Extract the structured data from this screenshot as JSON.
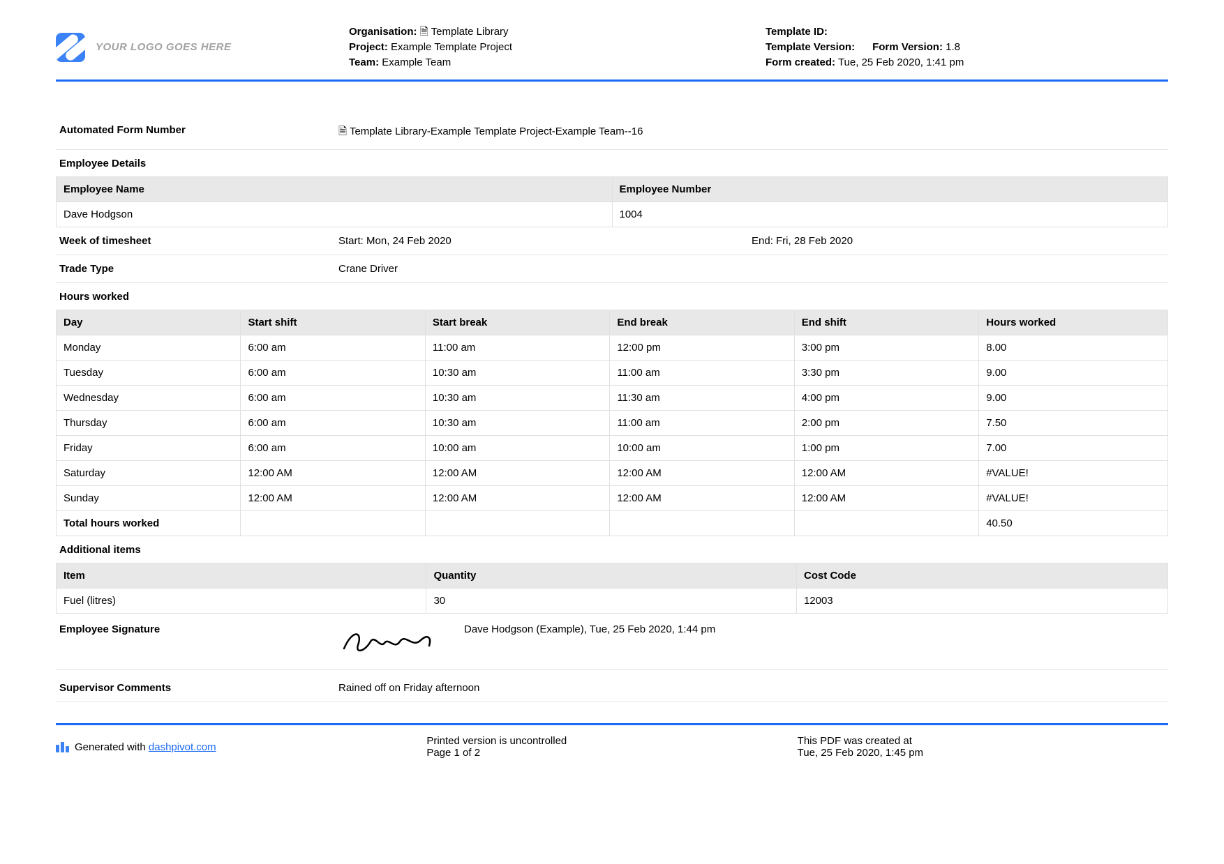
{
  "logo_placeholder": "YOUR LOGO GOES HERE",
  "header_meta_left": {
    "org_label": "Organisation:",
    "org_value": "🗎 Template Library",
    "project_label": "Project:",
    "project_value": "Example Template Project",
    "team_label": "Team:",
    "team_value": "Example Team"
  },
  "header_meta_right": {
    "tid_label": "Template ID:",
    "tver_label": "Template Version:",
    "fver_label": "Form Version:",
    "fver_value": "1.8",
    "created_label": "Form created:",
    "created_value": "Tue, 25 Feb 2020, 1:41 pm"
  },
  "form_number": {
    "label": "Automated Form Number",
    "value": "🗎 Template Library-Example Template Project-Example Team--16"
  },
  "employee_details_heading": "Employee Details",
  "employee_table": {
    "col1": "Employee Name",
    "col2": "Employee Number",
    "name": "Dave Hodgson",
    "number": "1004"
  },
  "week": {
    "label": "Week of timesheet",
    "start": "Start: Mon, 24 Feb 2020",
    "end": "End: Fri, 28 Feb 2020"
  },
  "trade": {
    "label": "Trade Type",
    "value": "Crane Driver"
  },
  "hours_heading": "Hours worked",
  "hours_table": {
    "columns": [
      "Day",
      "Start shift",
      "Start break",
      "End break",
      "End shift",
      "Hours worked"
    ],
    "rows": [
      [
        "Monday",
        "6:00 am",
        "11:00 am",
        "12:00 pm",
        "3:00 pm",
        "8.00"
      ],
      [
        "Tuesday",
        "6:00 am",
        "10:30 am",
        "11:00 am",
        "3:30 pm",
        "9.00"
      ],
      [
        "Wednesday",
        "6:00 am",
        "10:30 am",
        "11:30 am",
        "4:00 pm",
        "9.00"
      ],
      [
        "Thursday",
        "6:00 am",
        "10:30 am",
        "11:00 am",
        "2:00 pm",
        "7.50"
      ],
      [
        "Friday",
        "6:00 am",
        "10:00 am",
        "10:00 am",
        "1:00 pm",
        "7.00"
      ],
      [
        "Saturday",
        "12:00 AM",
        "12:00 AM",
        "12:00 AM",
        "12:00 AM",
        "#VALUE!"
      ],
      [
        "Sunday",
        "12:00 AM",
        "12:00 AM",
        "12:00 AM",
        "12:00 AM",
        "#VALUE!"
      ]
    ],
    "totals_label": "Total hours worked",
    "totals_value": "40.50"
  },
  "additional_heading": "Additional items",
  "additional_table": {
    "columns": [
      "Item",
      "Quantity",
      "Cost Code"
    ],
    "rows": [
      [
        "Fuel (litres)",
        "30",
        "12003"
      ]
    ]
  },
  "signature": {
    "label": "Employee Signature",
    "meta": "Dave Hodgson (Example), Tue, 25 Feb 2020, 1:44 pm"
  },
  "supervisor": {
    "label": "Supervisor Comments",
    "value": "Rained off on Friday afternoon"
  },
  "footer": {
    "gen_text_prefix": "Generated with ",
    "gen_link": "dashpivot.com",
    "center1": "Printed version is uncontrolled",
    "center2": "Page 1 of 2",
    "right1": "This PDF was created at",
    "right2": "Tue, 25 Feb 2020, 1:45 pm"
  }
}
